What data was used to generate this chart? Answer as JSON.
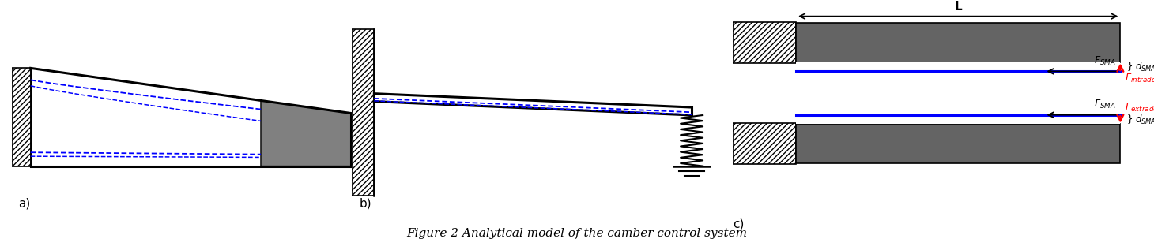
{
  "figure_caption": "Figure 2 Analytical model of the camber control system",
  "caption_style": "italic",
  "caption_fontsize": 11,
  "bg_color": "#ffffff",
  "label_a": "a)",
  "label_b": "b)",
  "label_c": "c)",
  "label_fontsize": 11,
  "dark_gray": "#646464",
  "medium_gray": "#808080"
}
